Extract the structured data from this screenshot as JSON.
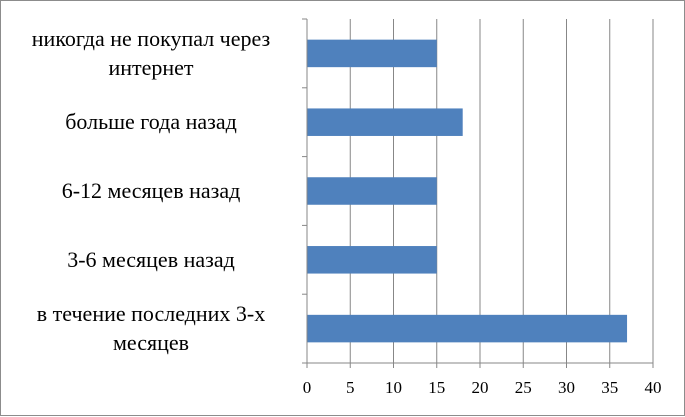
{
  "chart_data": {
    "type": "bar",
    "orientation": "horizontal",
    "categories": [
      [
        "в течение последних 3-х",
        "месяцев"
      ],
      [
        "3-6 месяцев назад"
      ],
      [
        "6-12 месяцев назад"
      ],
      [
        "больше года назад"
      ],
      [
        "никогда не покупал через",
        "интернет"
      ]
    ],
    "values": [
      37,
      15,
      15,
      18,
      15
    ],
    "xlim": [
      0,
      40
    ],
    "xticks": [
      "0",
      "5",
      "10",
      "15",
      "20",
      "25",
      "30",
      "35",
      "40"
    ],
    "grid": true,
    "legend": "none",
    "bar_color": "#4f81bd",
    "grid_color": "#878787",
    "axis_color": "#878787"
  }
}
